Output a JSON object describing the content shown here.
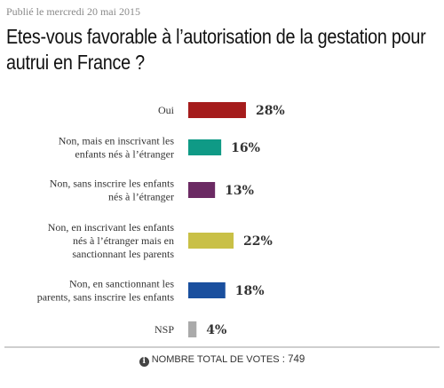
{
  "published": "Publié le mercredi 20 mai 2015",
  "title": "Etes-vous favorable à l’autorisation de la gestation pour autrui en France ?",
  "chart_data": {
    "type": "bar",
    "orientation": "horizontal",
    "categories": [
      [
        "Oui"
      ],
      [
        "Non, mais en inscrivant les",
        "enfants nés à l’étranger"
      ],
      [
        "Non, sans inscrire les enfants",
        "nés à l’étranger"
      ],
      [
        "Non, en inscrivant les enfants",
        "nés à l’étranger mais en",
        "sanctionnant les parents"
      ],
      [
        "Non, en sanctionnant les",
        "parents, sans inscrire les enfants"
      ],
      [
        "NSP"
      ]
    ],
    "values": [
      28,
      16,
      13,
      22,
      18,
      4
    ],
    "value_labels": [
      "28%",
      "16%",
      "13%",
      "22%",
      "18%",
      "4%"
    ],
    "colors": [
      "#a51c1c",
      "#0f9a86",
      "#6b2a63",
      "#c9c046",
      "#1a4f9e",
      "#aaaaaa"
    ],
    "unit": "%"
  },
  "footer": {
    "icon": "info-icon",
    "label": "Nombre total de votes",
    "separator": " : ",
    "count": "749"
  }
}
